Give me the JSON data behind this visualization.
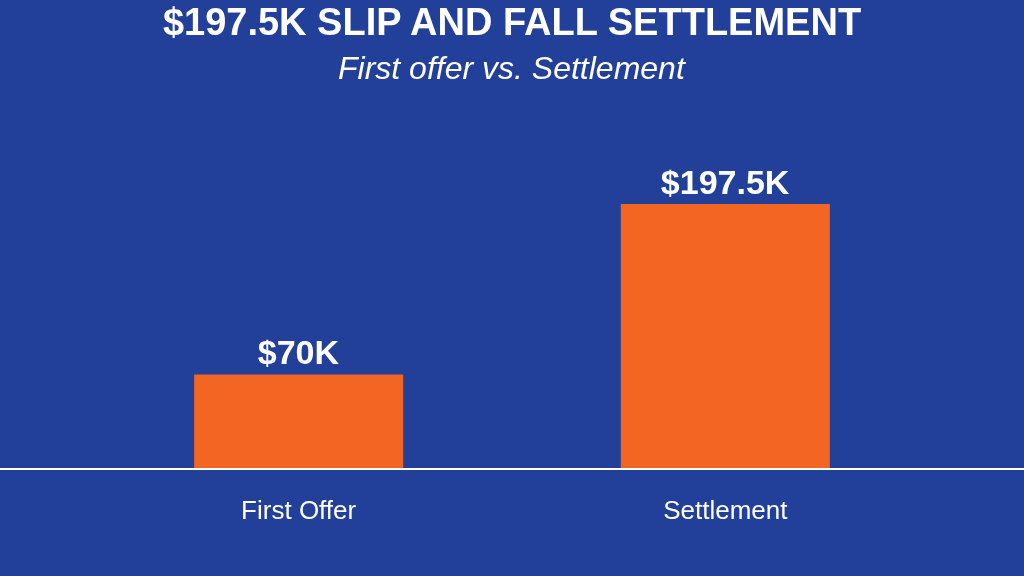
{
  "chart_data": {
    "type": "bar",
    "title": "$197.5K SLIP AND FALL SETTLEMENT",
    "subtitle": "First offer vs. Settlement",
    "categories": [
      "First Offer",
      "Settlement"
    ],
    "values": [
      70,
      197.5
    ],
    "value_labels": [
      "$70K",
      "$197.5K"
    ],
    "color": "#f26522",
    "grid": false,
    "legend": false
  }
}
